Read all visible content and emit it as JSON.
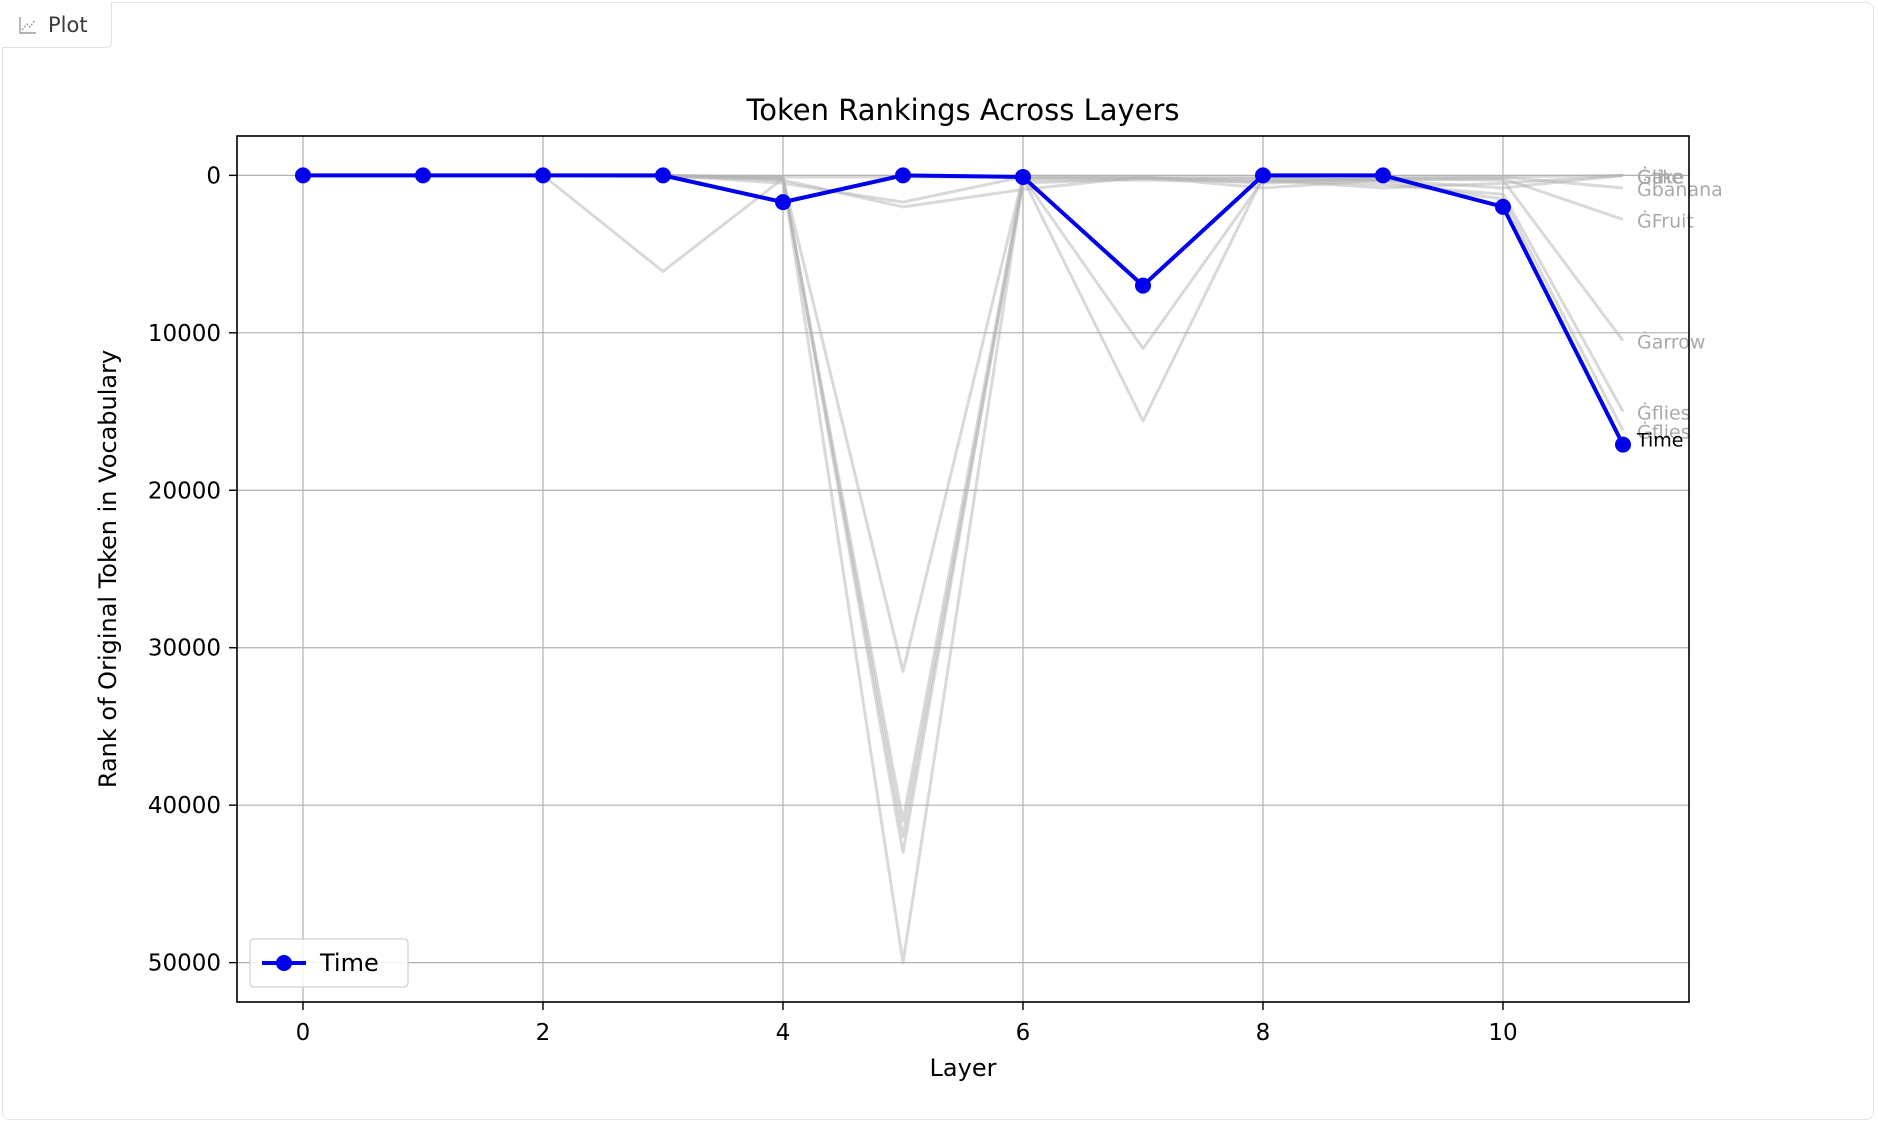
{
  "tab": {
    "label": "Plot",
    "icon": "line-chart-icon"
  },
  "chart_data": {
    "type": "line",
    "title": "Token Rankings Across Layers",
    "xlabel": "Layer",
    "ylabel": "Rank of Original Token in Vocabulary",
    "xlim": [
      -0.55,
      11.55
    ],
    "ylim": [
      -2500,
      52500
    ],
    "y_inverted": true,
    "xticks": [
      0,
      2,
      4,
      6,
      8,
      10
    ],
    "yticks": [
      0,
      10000,
      20000,
      30000,
      40000,
      50000
    ],
    "grid": true,
    "legend": {
      "position": "lower-left",
      "entries": [
        "Time"
      ]
    },
    "x": [
      0,
      1,
      2,
      3,
      4,
      5,
      6,
      7,
      8,
      9,
      10,
      11
    ],
    "highlight": {
      "name": "Time",
      "color": "#0000ee",
      "values": [
        0,
        0,
        0,
        0,
        1700,
        0,
        100,
        7000,
        0,
        0,
        2000,
        17100
      ]
    },
    "background_series": [
      {
        "end_label": "Ġflies",
        "values": [
          0,
          0,
          0,
          6100,
          200,
          31500,
          100,
          11000,
          300,
          600,
          1200,
          15000
        ]
      },
      {
        "end_label": "Ġflies",
        "values": [
          0,
          0,
          0,
          0,
          300,
          41000,
          200,
          15600,
          100,
          400,
          1500,
          16200
        ]
      },
      {
        "end_label": "Ġarrow",
        "values": [
          0,
          0,
          0,
          0,
          100,
          50000,
          300,
          300,
          400,
          200,
          300,
          10500
        ]
      },
      {
        "end_label": "ĠFruit",
        "values": [
          0,
          0,
          0,
          0,
          200,
          42000,
          500,
          200,
          200,
          300,
          200,
          2800
        ]
      },
      {
        "end_label": "Ġbanana",
        "values": [
          0,
          0,
          0,
          0,
          100,
          43000,
          200,
          100,
          500,
          200,
          100,
          800
        ]
      },
      {
        "end_label": "Ġlike",
        "values": [
          0,
          0,
          0,
          0,
          300,
          2000,
          900,
          100,
          800,
          300,
          800,
          0
        ]
      },
      {
        "end_label": "Ġa",
        "values": [
          0,
          0,
          0,
          0,
          500,
          1700,
          100,
          200,
          300,
          800,
          500,
          0
        ]
      },
      {
        "end_label": "Ġthe",
        "values": [
          0,
          0,
          0,
          100,
          100,
          100,
          100,
          100,
          100,
          100,
          100,
          0
        ]
      }
    ],
    "colors": {
      "background_line": "#b4b4b4",
      "background_label": "#a9a9a9",
      "axes": "#000000",
      "grid": "#b0b0b0"
    }
  }
}
